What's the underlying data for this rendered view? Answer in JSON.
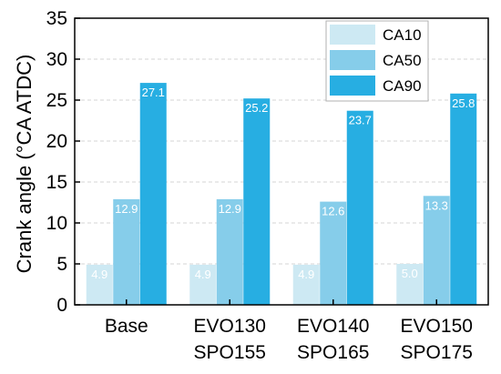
{
  "chart_data": {
    "type": "bar",
    "categories": [
      [
        "Base"
      ],
      [
        "EVO130",
        "SPO155"
      ],
      [
        "EVO140",
        "SPO165"
      ],
      [
        "EVO150",
        "SPO175"
      ]
    ],
    "series": [
      {
        "name": "CA10",
        "values": [
          4.9,
          4.9,
          4.9,
          5.0
        ],
        "color": "#cde9f3"
      },
      {
        "name": "CA50",
        "values": [
          12.9,
          12.9,
          12.6,
          13.3
        ],
        "color": "#86cdea"
      },
      {
        "name": "CA90",
        "values": [
          27.1,
          25.2,
          23.7,
          25.8
        ],
        "color": "#27aee2"
      }
    ],
    "data_labels": [
      [
        "4.9",
        "4.9",
        "4.9",
        "5.0"
      ],
      [
        "12.9",
        "12.9",
        "12.6",
        "13.3"
      ],
      [
        "27.1",
        "25.2",
        "23.7",
        "25.8"
      ]
    ],
    "title": "",
    "xlabel": "",
    "ylabel": "Crank angle (°CA ATDC)",
    "ylim": [
      0,
      35
    ],
    "yticks": [
      0,
      5,
      10,
      15,
      20,
      25,
      30,
      35
    ],
    "grid": true,
    "legend_position": "top-right"
  }
}
